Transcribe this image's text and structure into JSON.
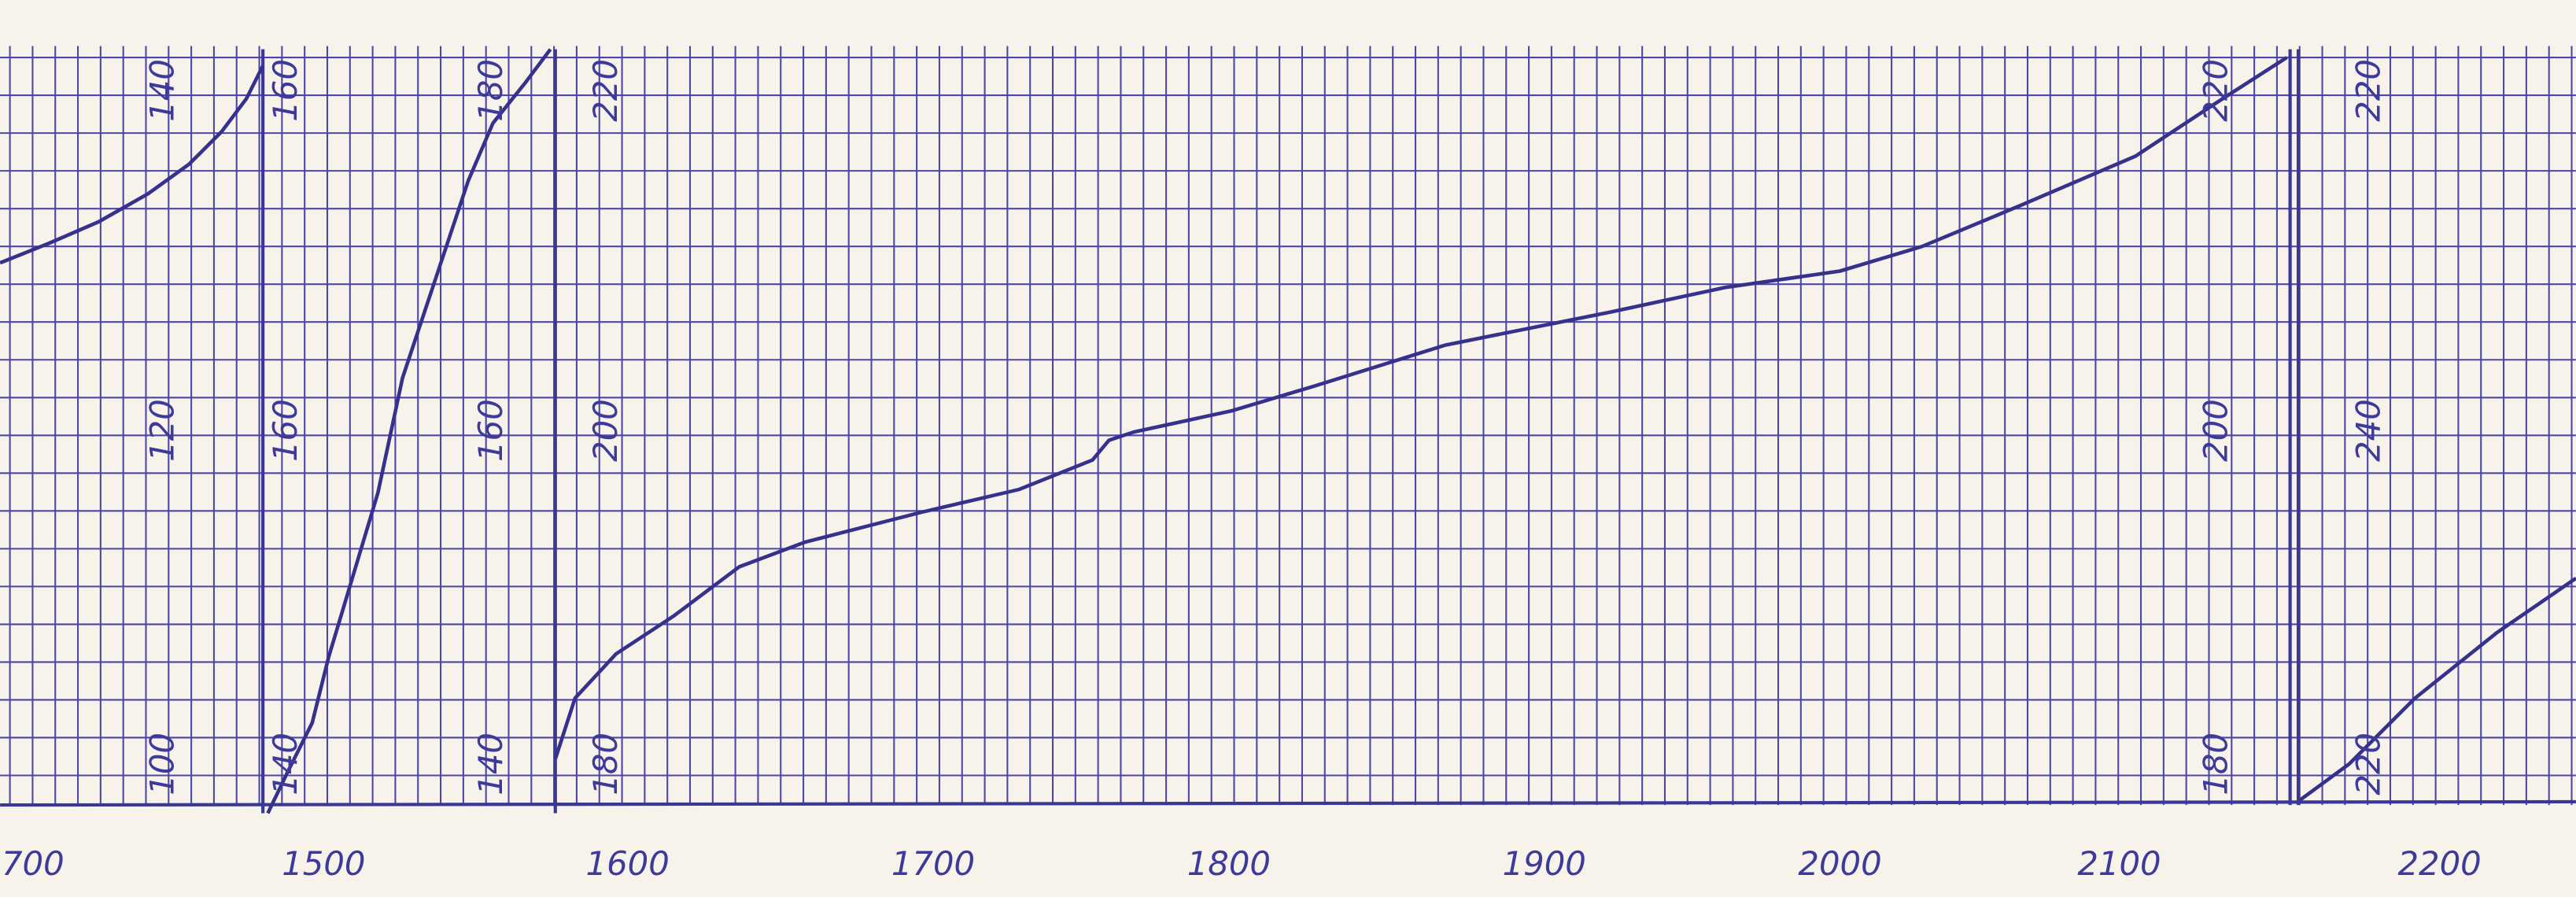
{
  "bottom_labels": [
    "700",
    "1500",
    "1600",
    "1700",
    "1800",
    "1900",
    "2000",
    "2100",
    "2200"
  ],
  "panels": [
    {
      "labels": [
        "140",
        "120",
        "100"
      ]
    },
    {
      "labels": [
        "160",
        "160",
        "140"
      ]
    },
    {
      "labels": [
        "180",
        "160",
        "140"
      ]
    },
    {
      "labels": [
        "220",
        "200",
        "180"
      ]
    },
    {
      "labels": [
        "220",
        "200",
        "180"
      ]
    },
    {
      "labels": [
        "220",
        "240",
        "220"
      ]
    }
  ]
}
